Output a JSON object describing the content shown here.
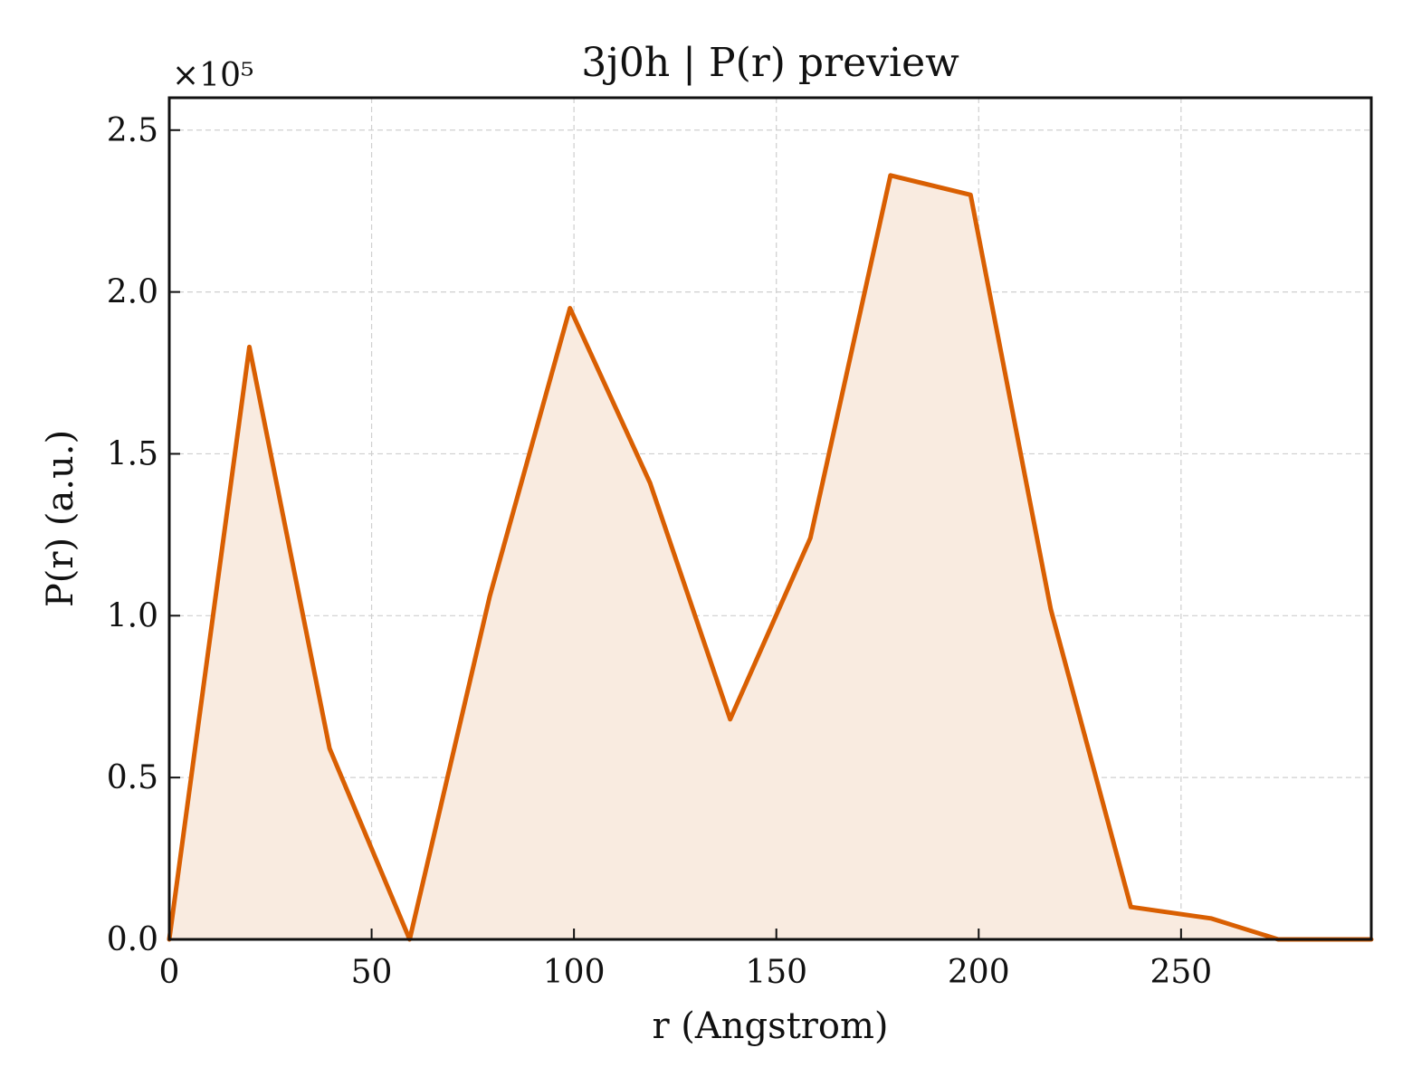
{
  "chart_data": {
    "type": "area",
    "title": "3j0h | P(r) preview",
    "xlabel": "r (Angstrom)",
    "ylabel": "P(r) (a.u.)",
    "y_multiplier_label": "×10⁵",
    "xlim": [
      0,
      297
    ],
    "ylim": [
      0,
      2.6
    ],
    "xticks": [
      0,
      50,
      100,
      150,
      200,
      250
    ],
    "yticks": [
      0.0,
      0.5,
      1.0,
      1.5,
      2.0,
      2.5
    ],
    "xtick_labels": [
      "0",
      "50",
      "100",
      "150",
      "200",
      "250"
    ],
    "ytick_labels": [
      "0.0",
      "0.5",
      "1.0",
      "1.5",
      "2.0",
      "2.5"
    ],
    "grid": true,
    "series": [
      {
        "x": [
          0,
          19.8,
          39.6,
          59.4,
          79.2,
          99,
          118.8,
          138.6,
          158.4,
          178.2,
          198,
          217.8,
          237.6,
          257.4,
          274,
          297
        ],
        "y": [
          0.0,
          1.83,
          0.59,
          0.0,
          1.06,
          1.95,
          1.41,
          0.68,
          1.24,
          2.36,
          2.3,
          1.02,
          0.1,
          0.065,
          0.0,
          0.0
        ],
        "color": "#d95f02",
        "fill_color": "#f9ebe0"
      }
    ]
  }
}
